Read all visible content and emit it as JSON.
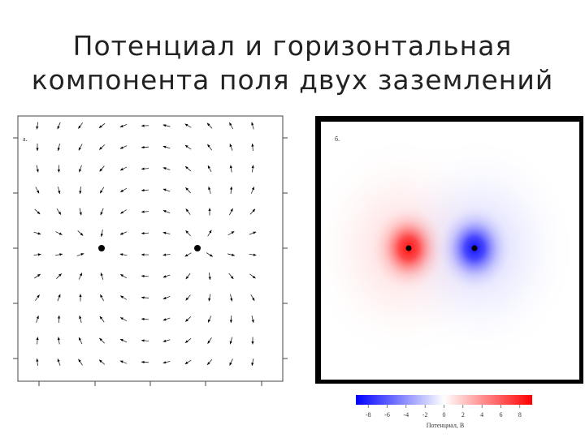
{
  "title_lines": [
    "Потенциал и горизонтальная",
    "компонента поля двух заземлений"
  ],
  "panel_a": {
    "label": "а."
  },
  "panel_b": {
    "label": "б."
  },
  "colorbar": {
    "limits": [
      -9.3,
      9.3
    ],
    "ticks": [
      -8,
      -6,
      -4,
      -2,
      0,
      2,
      4,
      6,
      8
    ],
    "label": "Потенциал, В"
  }
}
